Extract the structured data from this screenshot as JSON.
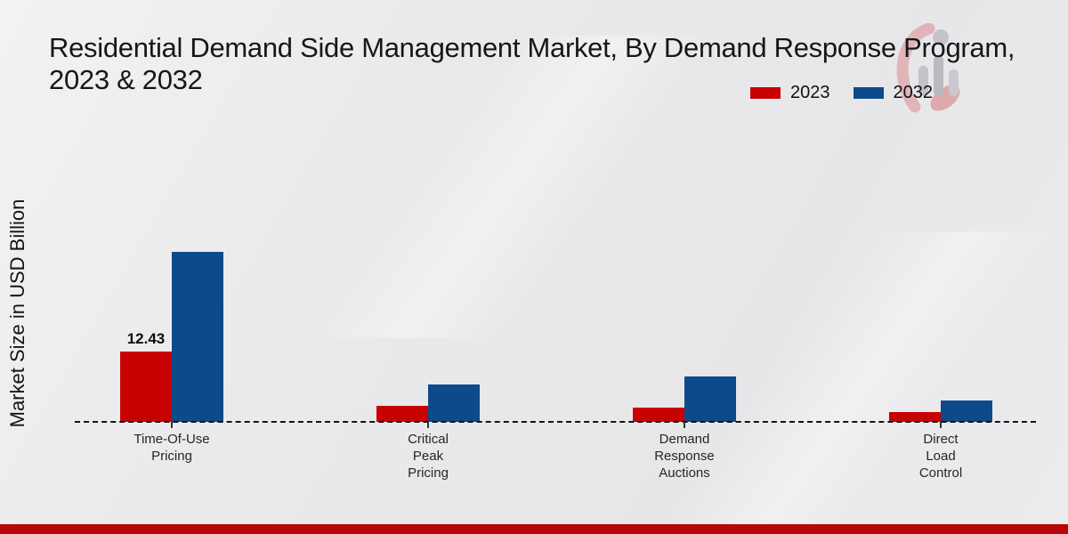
{
  "title": {
    "line1": "Residential Demand Side Management Market, By Demand Response Program,",
    "line2": "2023 & 2032"
  },
  "y_axis_label": "Market Size in USD Billion",
  "legend": [
    {
      "label": "2023",
      "color": "#c80101"
    },
    {
      "label": "2032",
      "color": "#0d4a8a"
    }
  ],
  "footer": {
    "band_color": "#b80606"
  },
  "chart_data": {
    "type": "bar",
    "title": "Residential Demand Side Management Market, By Demand Response Program, 2023 & 2032",
    "ylabel": "Market Size in USD Billion",
    "xlabel": "",
    "grid": false,
    "legend_position": "top-right",
    "baseline_style": "dashed",
    "categories": [
      "Time-Of-Use Pricing",
      "Critical Peak Pricing",
      "Demand Response Auctions",
      "Direct Load Control"
    ],
    "category_label_lines": [
      [
        "Time-Of-Use",
        "Pricing"
      ],
      [
        "Critical",
        "Peak",
        "Pricing"
      ],
      [
        "Demand",
        "Response",
        "Auctions"
      ],
      [
        "Direct",
        "Load",
        "Control"
      ]
    ],
    "series": [
      {
        "name": "2023",
        "color": "#c80101",
        "values": [
          12.43,
          2.8,
          2.5,
          1.7
        ]
      },
      {
        "name": "2032",
        "color": "#0d4a8a",
        "values": [
          30.0,
          6.6,
          8.0,
          3.8
        ]
      }
    ],
    "value_labels": [
      {
        "series": "2023",
        "category_index": 0,
        "text": "12.43"
      }
    ],
    "ylim": [
      0,
      32
    ]
  }
}
